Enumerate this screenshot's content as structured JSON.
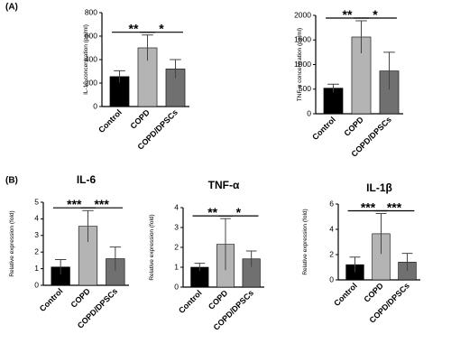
{
  "chart_data": [
    {
      "type": "bar",
      "panel_label": "(A)",
      "ylabel": "IL-1β concentration (pg/ml)",
      "categories": [
        "Control",
        "COPD",
        "COPD/DPSCs"
      ],
      "values": [
        255,
        500,
        320
      ],
      "errors": [
        50,
        110,
        80
      ],
      "colors": [
        "#000000",
        "#b4b4b4",
        "#707070"
      ],
      "ylim": [
        0,
        800
      ],
      "yticks": [
        0,
        200,
        400,
        600,
        800
      ],
      "significance": [
        {
          "groups": [
            "Control",
            "COPD"
          ],
          "label": "**"
        },
        {
          "groups": [
            "COPD",
            "COPD/DPSCs"
          ],
          "label": "*"
        }
      ]
    },
    {
      "type": "bar",
      "ylabel": "TNF-α concentration (pg/ml)",
      "categories": [
        "Control",
        "COPD",
        "COPD/DPSCs"
      ],
      "values": [
        520,
        1560,
        870
      ],
      "errors": [
        80,
        330,
        380
      ],
      "colors": [
        "#000000",
        "#b4b4b4",
        "#707070"
      ],
      "ylim": [
        0,
        2000
      ],
      "yticks": [
        0,
        500,
        1000,
        1500,
        2000
      ],
      "significance": [
        {
          "groups": [
            "Control",
            "COPD"
          ],
          "label": "**"
        },
        {
          "groups": [
            "COPD",
            "COPD/DPSCs"
          ],
          "label": "*"
        }
      ]
    },
    {
      "type": "bar",
      "panel_label": "(B)",
      "title": "IL-6",
      "ylabel": "Relative expression  (fold)",
      "categories": [
        "Control",
        "COPD",
        "COPD/DPSCs"
      ],
      "values": [
        1.1,
        3.55,
        1.6
      ],
      "errors": [
        0.45,
        0.95,
        0.7
      ],
      "colors": [
        "#000000",
        "#b4b4b4",
        "#707070"
      ],
      "ylim": [
        0,
        5
      ],
      "yticks": [
        0,
        1,
        2,
        3,
        4,
        5
      ],
      "significance": [
        {
          "groups": [
            "Control",
            "COPD"
          ],
          "label": "***"
        },
        {
          "groups": [
            "COPD",
            "COPD/DPSCs"
          ],
          "label": "***"
        }
      ]
    },
    {
      "type": "bar",
      "title": "TNF-α",
      "ylabel": "Relative expression  (fold)",
      "categories": [
        "Control",
        "COPD",
        "COPD/DPSCs"
      ],
      "values": [
        1.0,
        2.15,
        1.42
      ],
      "errors": [
        0.2,
        1.3,
        0.4
      ],
      "colors": [
        "#000000",
        "#b4b4b4",
        "#707070"
      ],
      "ylim": [
        0,
        4
      ],
      "yticks": [
        0,
        1,
        2,
        3,
        4
      ],
      "significance": [
        {
          "groups": [
            "Control",
            "COPD"
          ],
          "label": "**"
        },
        {
          "groups": [
            "COPD",
            "COPD/DPSCs"
          ],
          "label": "*"
        }
      ]
    },
    {
      "type": "bar",
      "title": "IL-1β",
      "ylabel": "Relative expression  (fold)",
      "categories": [
        "Control",
        "COPD",
        "COPD/DPSCs"
      ],
      "values": [
        1.2,
        3.65,
        1.4
      ],
      "errors": [
        0.6,
        1.6,
        0.7
      ],
      "colors": [
        "#000000",
        "#b4b4b4",
        "#707070"
      ],
      "ylim": [
        0,
        6
      ],
      "yticks": [
        0,
        2,
        4,
        6
      ],
      "significance": [
        {
          "groups": [
            "Control",
            "COPD"
          ],
          "label": "***"
        },
        {
          "groups": [
            "COPD",
            "COPD/DPSCs"
          ],
          "label": "***"
        }
      ]
    }
  ]
}
